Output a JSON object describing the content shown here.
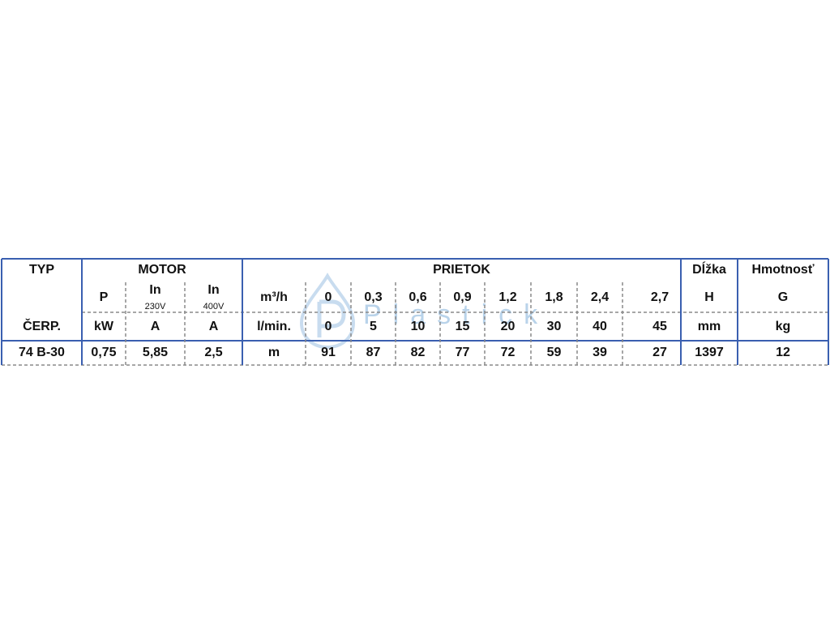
{
  "table": {
    "header": [
      "TYP",
      "MOTOR",
      "PRIETOK",
      "Dĺžka",
      "Hmotnosť"
    ],
    "row_symbols": [
      "P",
      "In",
      "In",
      "m³/h",
      "0",
      "0,3",
      "0,6",
      "0,9",
      "1,2",
      "1,8",
      "2,4",
      "2,7",
      "H",
      "G"
    ],
    "row_symbols_sub": [
      "230V",
      "400V"
    ],
    "row_units": [
      "ČERP.",
      "kW",
      "A",
      "A",
      "l/min.",
      "0",
      "5",
      "10",
      "15",
      "20",
      "30",
      "40",
      "45",
      "mm",
      "kg"
    ],
    "rows": [
      [
        "74 B-30",
        "0,75",
        "5,85",
        "2,5",
        "m",
        "91",
        "87",
        "82",
        "77",
        "72",
        "59",
        "39",
        "27",
        "1397",
        "12"
      ]
    ]
  },
  "watermark": "Plastick"
}
